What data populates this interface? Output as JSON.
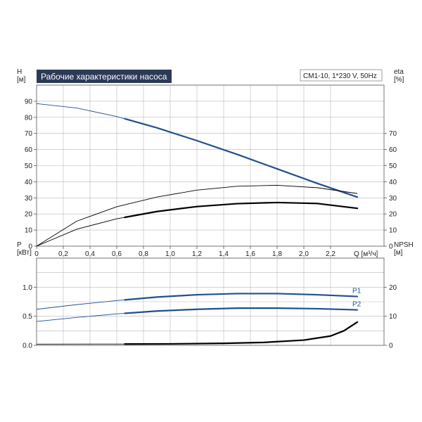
{
  "colors": {
    "blue": "#1f4f8f",
    "black": "#000000",
    "grid": "#b8b8b8",
    "title_bg": "#2b3a55"
  },
  "header": {
    "title": "Рабочие характеристики насоса",
    "model": "CM1-10, 1*230 V, 50Hz"
  },
  "chart_data": [
    {
      "type": "line",
      "title": "Рабочие характеристики насоса",
      "xlabel": "Q [м³/ч]",
      "ylabel": "H\n[м]",
      "y2label": "eta\n[%]",
      "xlim": [
        0,
        2.6
      ],
      "ylim": [
        0,
        100
      ],
      "y2lim": [
        0,
        100
      ],
      "x_ticks": [
        "0",
        "0,2",
        "0,4",
        "0,6",
        "0,8",
        "1,0",
        "1,2",
        "1,4",
        "1,6",
        "1,8",
        "2,0",
        "2,2"
      ],
      "y_ticks": [
        "0",
        "10",
        "20",
        "30",
        "40",
        "50",
        "60",
        "70",
        "80",
        "90"
      ],
      "y2_ticks": [
        "0",
        "10",
        "20",
        "30",
        "40",
        "50",
        "60",
        "70"
      ],
      "grid": true,
      "series": [
        {
          "color": "blue",
          "axis": "left",
          "x": [
            0,
            0.3,
            0.6,
            0.9,
            1.2,
            1.5,
            1.8,
            2.1,
            2.4
          ],
          "y": [
            88.5,
            85.8,
            80.5,
            73.5,
            65.5,
            57,
            48,
            39,
            30.5
          ],
          "bold_from": 0.66
        },
        {
          "color": "black",
          "axis": "right",
          "x": [
            0,
            0.3,
            0.6,
            0.9,
            1.2,
            1.5,
            1.8,
            2.1,
            2.4
          ],
          "y": [
            0,
            15.5,
            24.5,
            30.5,
            34.8,
            37.2,
            37.8,
            36.3,
            32.7
          ],
          "bold_from": 99
        },
        {
          "color": "black",
          "axis": "right",
          "x": [
            0,
            0.3,
            0.6,
            0.9,
            1.2,
            1.5,
            1.8,
            2.1,
            2.4
          ],
          "y": [
            0,
            10.5,
            17,
            21.5,
            24.6,
            26.4,
            27.1,
            26.5,
            23.5
          ],
          "bold_from": 0.66
        }
      ]
    },
    {
      "type": "line",
      "ylabel": "P\n[кВт]",
      "y2label": "NPSH\n[м]",
      "xlim": [
        0,
        2.6
      ],
      "ylim": [
        0,
        1.5
      ],
      "y2lim": [
        0,
        30
      ],
      "y_ticks": [
        "0.0",
        "0.5",
        "1.0"
      ],
      "y2_ticks": [
        "0",
        "10",
        "20"
      ],
      "grid": true,
      "series": [
        {
          "name": "P1",
          "color": "blue",
          "axis": "left",
          "x": [
            0,
            0.3,
            0.6,
            0.9,
            1.2,
            1.5,
            1.8,
            2.1,
            2.4
          ],
          "y": [
            0.62,
            0.7,
            0.77,
            0.83,
            0.87,
            0.89,
            0.89,
            0.87,
            0.84
          ],
          "bold_from": 0.66
        },
        {
          "name": "P2",
          "color": "blue",
          "axis": "left",
          "x": [
            0,
            0.3,
            0.6,
            0.9,
            1.2,
            1.5,
            1.8,
            2.1,
            2.4
          ],
          "y": [
            0.41,
            0.48,
            0.54,
            0.59,
            0.62,
            0.64,
            0.64,
            0.63,
            0.61
          ],
          "bold_from": 0.66
        },
        {
          "color": "black",
          "axis": "right",
          "x": [
            0,
            0.66,
            1.0,
            1.4,
            1.7,
            2.0,
            2.2,
            2.3,
            2.4
          ],
          "y": [
            0.4,
            0.45,
            0.5,
            0.7,
            1.0,
            1.8,
            3.2,
            5.0,
            8.0
          ],
          "bold_from": 0.66
        }
      ]
    }
  ]
}
